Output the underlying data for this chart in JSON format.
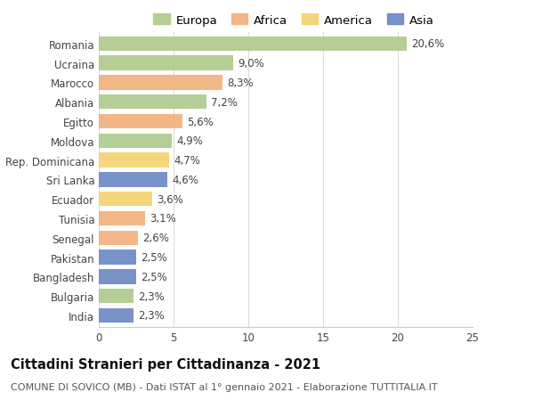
{
  "categories": [
    "Romania",
    "Ucraina",
    "Marocco",
    "Albania",
    "Egitto",
    "Moldova",
    "Rep. Dominicana",
    "Sri Lanka",
    "Ecuador",
    "Tunisia",
    "Senegal",
    "Pakistan",
    "Bangladesh",
    "Bulgaria",
    "India"
  ],
  "values": [
    20.6,
    9.0,
    8.3,
    7.2,
    5.6,
    4.9,
    4.7,
    4.6,
    3.6,
    3.1,
    2.6,
    2.5,
    2.5,
    2.3,
    2.3
  ],
  "labels": [
    "20,6%",
    "9,0%",
    "8,3%",
    "7,2%",
    "5,6%",
    "4,9%",
    "4,7%",
    "4,6%",
    "3,6%",
    "3,1%",
    "2,6%",
    "2,5%",
    "2,5%",
    "2,3%",
    "2,3%"
  ],
  "continent": [
    "Europa",
    "Europa",
    "Africa",
    "Europa",
    "Africa",
    "Europa",
    "America",
    "Asia",
    "America",
    "Africa",
    "Africa",
    "Asia",
    "Asia",
    "Europa",
    "Asia"
  ],
  "colors": {
    "Europa": "#adc98a",
    "Africa": "#f2b07a",
    "America": "#f5d26e",
    "Asia": "#6a87c4"
  },
  "legend_items": [
    "Europa",
    "Africa",
    "America",
    "Asia"
  ],
  "xlim": [
    0,
    25
  ],
  "xticks": [
    0,
    5,
    10,
    15,
    20,
    25
  ],
  "title": "Cittadini Stranieri per Cittadinanza - 2021",
  "subtitle": "COMUNE DI SOVICO (MB) - Dati ISTAT al 1° gennaio 2021 - Elaborazione TUTTITALIA.IT",
  "background_color": "#ffffff",
  "bar_height": 0.75,
  "label_fontsize": 8.5,
  "title_fontsize": 10.5,
  "subtitle_fontsize": 8,
  "ytick_fontsize": 8.5,
  "xtick_fontsize": 8.5,
  "legend_fontsize": 9.5
}
